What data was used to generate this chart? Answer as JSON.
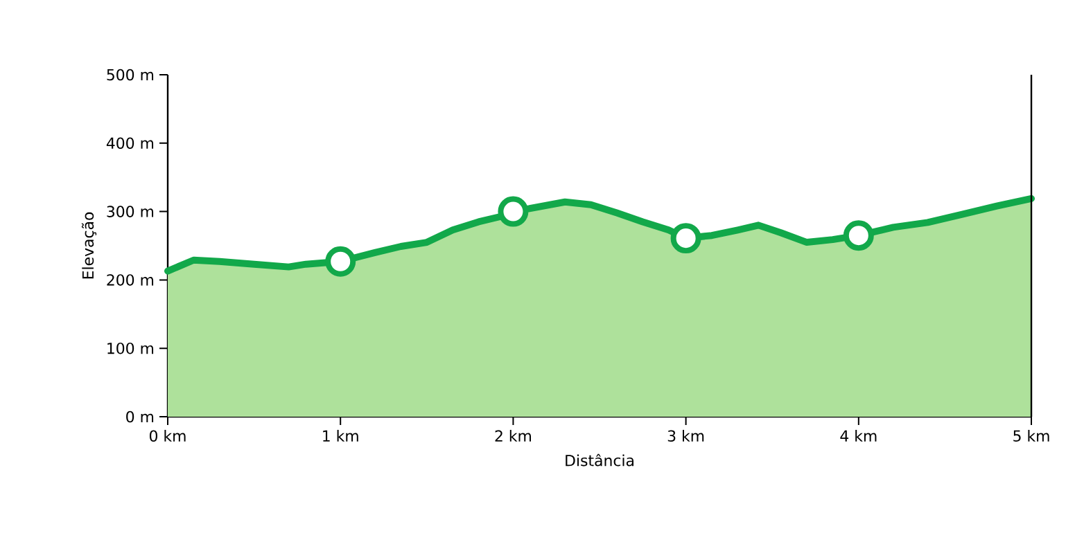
{
  "chart_data": {
    "type": "area",
    "xlabel": "Distância",
    "ylabel": "Elevação",
    "xlim": [
      0,
      5
    ],
    "ylim": [
      0,
      500
    ],
    "xticks": [
      {
        "value": 0,
        "label": "0 km"
      },
      {
        "value": 1,
        "label": "1 km"
      },
      {
        "value": 2,
        "label": "2 km"
      },
      {
        "value": 3,
        "label": "3 km"
      },
      {
        "value": 4,
        "label": "4 km"
      },
      {
        "value": 5,
        "label": "5 km"
      }
    ],
    "yticks": [
      {
        "value": 0,
        "label": "0 m"
      },
      {
        "value": 100,
        "label": "100 m"
      },
      {
        "value": 200,
        "label": "200 m"
      },
      {
        "value": 300,
        "label": "300 m"
      },
      {
        "value": 400,
        "label": "400 m"
      },
      {
        "value": 500,
        "label": "500 m"
      }
    ],
    "grid": false,
    "series": [
      {
        "color": "#12a84a",
        "x": [
          0,
          0.15,
          0.3,
          0.5,
          0.7,
          0.8,
          1.0,
          1.2,
          1.35,
          1.5,
          1.65,
          1.8,
          1.95,
          2.0,
          2.15,
          2.3,
          2.45,
          2.6,
          2.75,
          2.9,
          3.0,
          3.15,
          3.3,
          3.42,
          3.55,
          3.7,
          3.85,
          4.0,
          4.2,
          4.4,
          4.6,
          4.8,
          5.0
        ],
        "values": [
          213,
          229,
          227,
          223,
          219,
          223,
          227,
          240,
          249,
          255,
          273,
          285,
          294,
          300,
          307,
          314,
          310,
          298,
          285,
          273,
          261,
          265,
          273,
          280,
          269,
          255,
          259,
          265,
          277,
          284,
          296,
          308,
          319
        ]
      },
      {
        "type": "scatter",
        "color": "#12a84a",
        "x": [
          1,
          2,
          3,
          4
        ],
        "values": [
          227,
          300,
          261,
          265
        ]
      }
    ]
  }
}
